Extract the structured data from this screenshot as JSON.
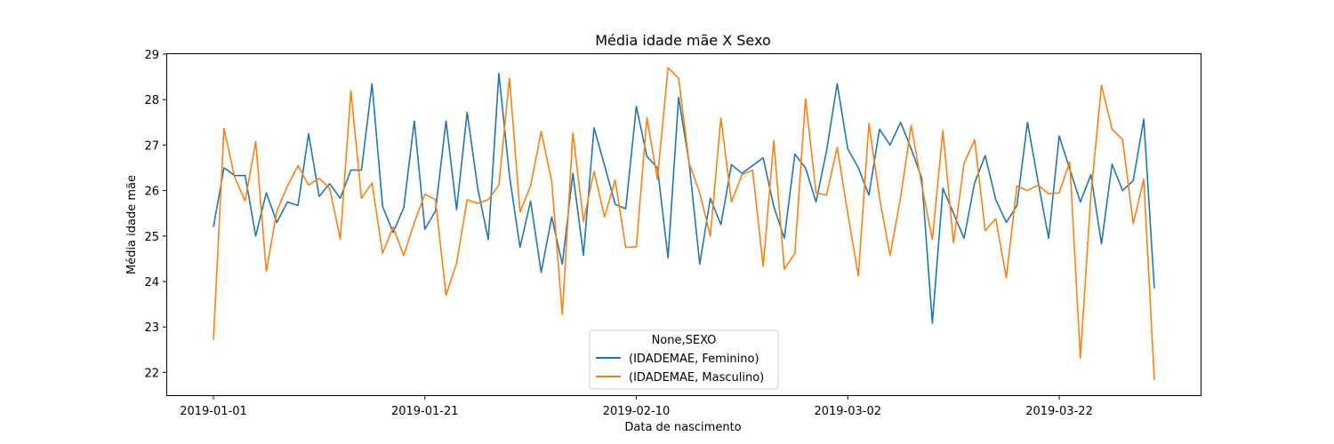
{
  "chart_data": {
    "type": "line",
    "title": "Média idade mãe X Sexo",
    "xlabel": "Data de nascimento",
    "ylabel": "Média idade mãe",
    "x_start": "2019-01-01",
    "x_end": "2019-03-31",
    "xticks": [
      "2019-01-01",
      "2019-01-21",
      "2019-02-10",
      "2019-03-02",
      "2019-03-22"
    ],
    "yticks": [
      22,
      23,
      24,
      25,
      26,
      27,
      28,
      29
    ],
    "ylim": [
      21.5,
      29.0
    ],
    "grid": false,
    "legend": {
      "title": "None,SEXO",
      "placement": "lower-center"
    },
    "series": [
      {
        "name": "(IDADEMAE, Feminino)",
        "color": "#1f77b4",
        "values": [
          25.2,
          26.5,
          26.33,
          26.33,
          25.0,
          25.95,
          25.3,
          25.75,
          25.67,
          27.25,
          25.87,
          26.15,
          25.83,
          26.45,
          26.45,
          28.35,
          25.65,
          25.08,
          25.62,
          27.53,
          25.15,
          25.55,
          27.53,
          25.58,
          27.72,
          26.05,
          24.92,
          28.58,
          26.33,
          24.75,
          25.77,
          24.2,
          25.42,
          24.38,
          26.38,
          24.58,
          27.38,
          26.55,
          25.7,
          25.6,
          27.85,
          26.75,
          26.5,
          24.52,
          28.05,
          26.6,
          24.38,
          25.83,
          25.25,
          26.57,
          26.38,
          26.55,
          26.72,
          25.65,
          24.95,
          26.8,
          26.5,
          25.75,
          26.88,
          28.35,
          26.92,
          26.5,
          25.9,
          27.35,
          27.0,
          27.5,
          26.92,
          26.27,
          23.08,
          26.05,
          25.5,
          24.95,
          26.17,
          26.77,
          25.8,
          25.3,
          25.67,
          27.5,
          26.2,
          24.95,
          27.2,
          26.47,
          25.75,
          26.35,
          24.83,
          26.58,
          26.0,
          26.22,
          27.57,
          23.85
        ]
      },
      {
        "name": "(IDADEMAE, Masculino)",
        "color": "#ff7f0e",
        "values": [
          22.72,
          27.37,
          26.3,
          25.77,
          27.08,
          24.22,
          25.55,
          26.1,
          26.55,
          26.12,
          26.27,
          26.05,
          24.93,
          28.2,
          25.83,
          26.17,
          24.62,
          25.2,
          24.57,
          25.3,
          25.92,
          25.8,
          23.7,
          24.4,
          25.8,
          25.72,
          25.8,
          26.12,
          28.47,
          25.53,
          26.1,
          27.3,
          26.2,
          23.27,
          27.27,
          25.32,
          26.42,
          25.42,
          26.23,
          24.75,
          24.76,
          27.6,
          26.25,
          28.7,
          28.47,
          26.6,
          25.95,
          25.0,
          27.6,
          25.75,
          26.35,
          26.45,
          24.33,
          27.1,
          24.27,
          24.62,
          28.02,
          25.95,
          25.9,
          26.95,
          25.5,
          24.12,
          27.47,
          25.85,
          24.57,
          25.85,
          27.43,
          26.12,
          24.92,
          27.32,
          24.85,
          26.6,
          27.12,
          25.12,
          25.38,
          24.08,
          26.1,
          26.0,
          26.12,
          25.93,
          25.95,
          26.63,
          22.32,
          25.9,
          28.32,
          27.35,
          27.12,
          25.27,
          26.25,
          21.83
        ]
      }
    ]
  }
}
